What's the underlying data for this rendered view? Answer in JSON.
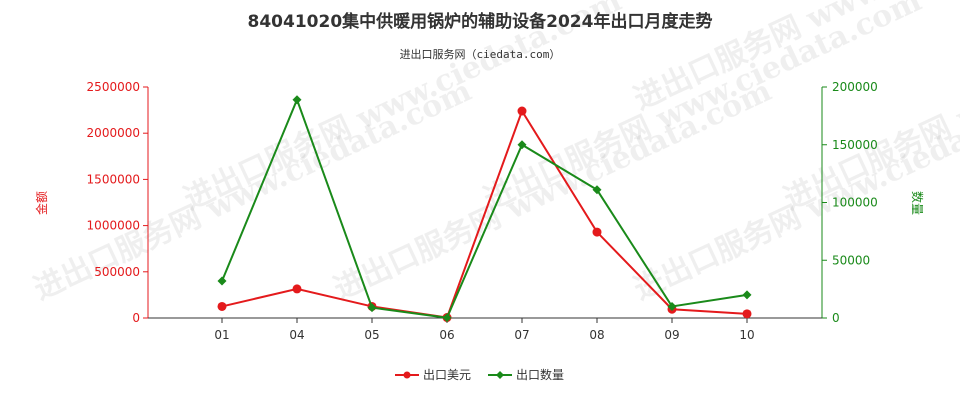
{
  "title": "84041020集中供暖用锅炉的辅助设备2024年出口月度走势",
  "subtitle": "进出口服务网（ciedata.com）",
  "watermark": "进出口服务网 www.ciedata.com",
  "colors": {
    "series_amount": "#e41a1c",
    "series_qty": "#1a8a1a",
    "left_axis": "#e41a1c",
    "right_axis": "#1a8a1a",
    "axis_line": "#333333"
  },
  "chart_data": {
    "type": "line",
    "categories": [
      "01",
      "04",
      "05",
      "06",
      "07",
      "08",
      "09",
      "10"
    ],
    "y_left": {
      "label": "金额",
      "ylim": [
        0,
        2500000
      ],
      "ticks": [
        0,
        500000,
        1000000,
        1500000,
        2000000,
        2500000
      ],
      "tick_labels": [
        "0",
        "500000",
        "1000000",
        "1500000",
        "2000000",
        "2500000"
      ]
    },
    "y_right": {
      "label": "数量",
      "ylim": [
        0,
        200000
      ],
      "ticks": [
        0,
        50000,
        100000,
        150000,
        200000
      ],
      "tick_labels": [
        "0",
        "50000",
        "100000",
        "150000",
        "200000"
      ]
    },
    "series": [
      {
        "name": "出口美元",
        "axis": "left",
        "values": [
          125000,
          315000,
          125000,
          5000,
          2240000,
          930000,
          95000,
          45000
        ]
      },
      {
        "name": "出口数量",
        "axis": "right",
        "values": [
          32000,
          189000,
          9000,
          200,
          150000,
          111000,
          10000,
          20000
        ]
      }
    ],
    "grid": false,
    "legend_position": "bottom-center"
  }
}
